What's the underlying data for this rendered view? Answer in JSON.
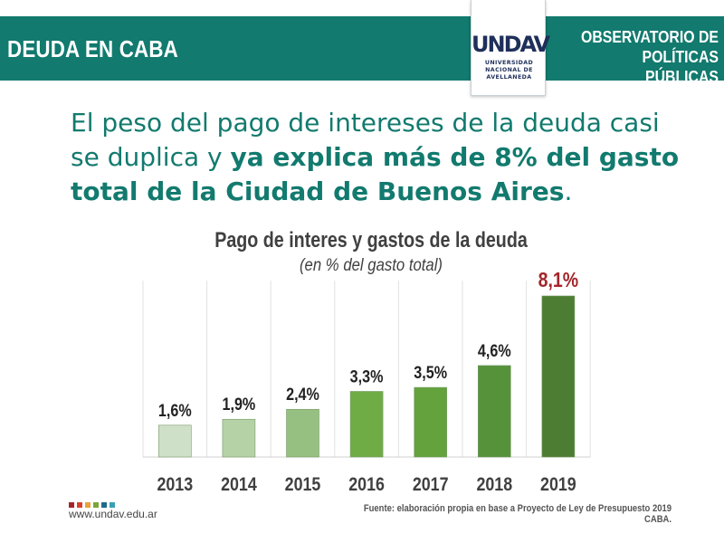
{
  "header": {
    "left_title": "DEUDA EN CABA",
    "right_line1": "OBSERVATORIO DE",
    "right_line2": "POLÍTICAS PÚBLICAS",
    "bar_color": "#127a6e"
  },
  "logo": {
    "mark": "UNDAV",
    "line1": "UNIVERSIDAD",
    "line2": "NACIONAL DE",
    "line3": "AVELLANEDA"
  },
  "headline": {
    "part1": "El peso del pago de intereses de la deuda casi se duplica y ",
    "part2_bold": "ya explica más de 8% del gasto total de la Ciudad de Buenos Aires",
    "part3": "."
  },
  "chart_data": {
    "type": "bar",
    "title": "Pago de interes y gastos de la deuda",
    "subtitle": "(en % del gasto total)",
    "categories": [
      "2013",
      "2014",
      "2015",
      "2016",
      "2017",
      "2018",
      "2019"
    ],
    "values": [
      1.6,
      1.9,
      2.4,
      3.3,
      3.5,
      4.6,
      8.1
    ],
    "value_labels": [
      "1,6%",
      "1,9%",
      "2,4%",
      "3,3%",
      "3,5%",
      "4,6%",
      "8,1%"
    ],
    "bar_colors": [
      "#cfe0c8",
      "#b5d2a6",
      "#96c081",
      "#6fac46",
      "#63a23c",
      "#56923a",
      "#4d7d32"
    ],
    "label_colors": [
      "#222222",
      "#222222",
      "#222222",
      "#222222",
      "#222222",
      "#222222",
      "#a3262a"
    ],
    "ylim": [
      0,
      8.1
    ],
    "grid": "vertical",
    "xlabel": "",
    "ylabel": ""
  },
  "footer": {
    "url": "www.undav.edu.ar",
    "source": "Fuente: elaboración propia en base a Proyecto de Ley de Presupuesto 2019 CABA.",
    "dot_colors": [
      "#a3262a",
      "#d9432b",
      "#e8a33a",
      "#7aa63c",
      "#1e6b8a",
      "#3a9fb5"
    ]
  }
}
